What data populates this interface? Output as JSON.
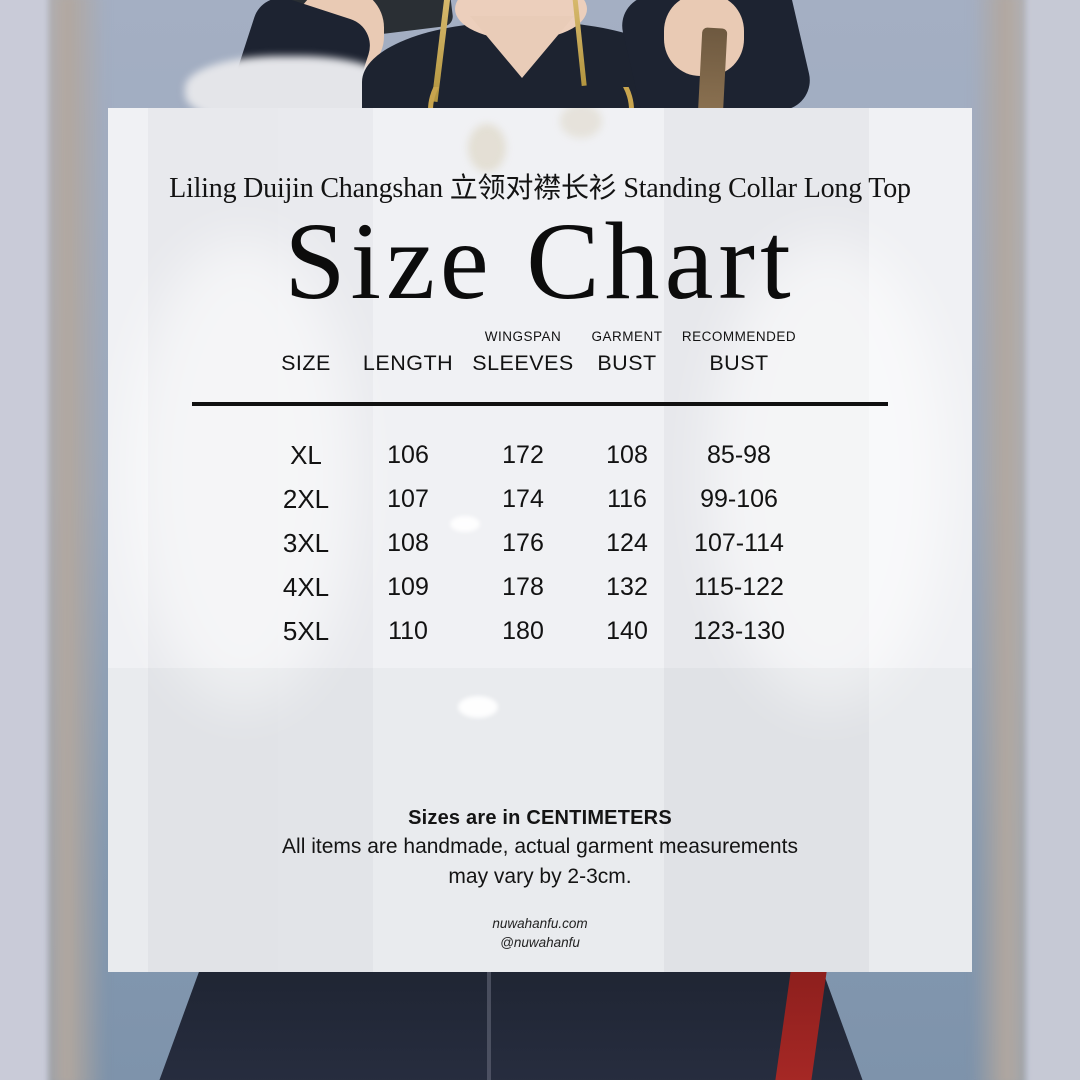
{
  "header": {
    "product_line": "Liling Duijin Changshan 立领对襟长衫 Standing Collar Long Top",
    "title": "Size Chart"
  },
  "table": {
    "columns": [
      {
        "sub": "",
        "label": "SIZE"
      },
      {
        "sub": "",
        "label": "LENGTH"
      },
      {
        "sub": "WINGSPAN",
        "label": "SLEEVES"
      },
      {
        "sub": "GARMENT",
        "label": "BUST"
      },
      {
        "sub": "RECOMMENDED",
        "label": "BUST"
      }
    ],
    "rows": [
      {
        "size": "XL",
        "length": "106",
        "sleeves": "172",
        "garment_bust": "108",
        "recommended_bust": "85-98"
      },
      {
        "size": "2XL",
        "length": "107",
        "sleeves": "174",
        "garment_bust": "116",
        "recommended_bust": "99-106"
      },
      {
        "size": "3XL",
        "length": "108",
        "sleeves": "176",
        "garment_bust": "124",
        "recommended_bust": "107-114"
      },
      {
        "size": "4XL",
        "length": "109",
        "sleeves": "178",
        "garment_bust": "132",
        "recommended_bust": "115-122"
      },
      {
        "size": "5XL",
        "length": "110",
        "sleeves": "180",
        "garment_bust": "140",
        "recommended_bust": "123-130"
      }
    ]
  },
  "notes": {
    "units": "Sizes are in CENTIMETERS",
    "disclaimer_line1": "All items are handmade, actual garment measurements",
    "disclaimer_line2": "may vary by 2-3cm."
  },
  "footer": {
    "website": "nuwahanfu.com",
    "handle": "@nuwahanfu"
  },
  "colors": {
    "card": "#f0f1f4",
    "text": "#121212",
    "backdrop_blue": "#9aa8bd",
    "frame_tan": "#b2a79e",
    "frame_lavender": "#c9cbd8",
    "garment_navy": "#1d2330",
    "skirt_red_stripe": "#9e2421",
    "necklace_gold": "#c9a54e"
  },
  "chart_data": {
    "type": "table",
    "title": "Size Chart",
    "subtitle": "Liling Duijin Changshan 立领对襟长衫 Standing Collar Long Top",
    "units": "centimeters",
    "columns": [
      "SIZE",
      "LENGTH",
      "WINGSPAN SLEEVES",
      "GARMENT BUST",
      "RECOMMENDED BUST"
    ],
    "rows": [
      [
        "XL",
        106,
        172,
        108,
        "85-98"
      ],
      [
        "2XL",
        107,
        174,
        116,
        "99-106"
      ],
      [
        "3XL",
        108,
        176,
        124,
        "107-114"
      ],
      [
        "4XL",
        109,
        178,
        132,
        "115-122"
      ],
      [
        "5XL",
        110,
        180,
        140,
        "123-130"
      ]
    ],
    "footnotes": [
      "Sizes are in CENTIMETERS",
      "All items are handmade, actual garment measurements may vary by 2-3cm."
    ]
  }
}
